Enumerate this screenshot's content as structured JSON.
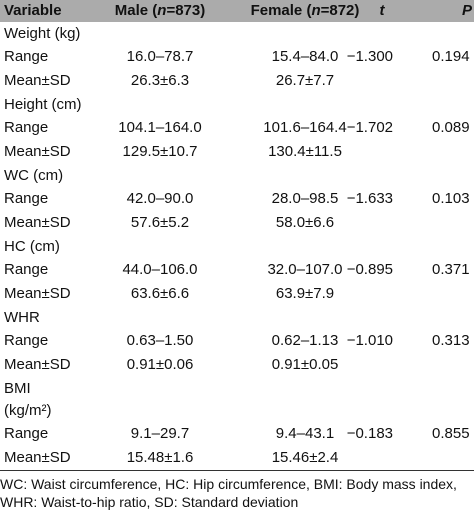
{
  "table": {
    "header": [
      [
        "Variable"
      ],
      [
        "Male (",
        "n",
        "=873)"
      ],
      [
        "Female (",
        "n",
        "=872)"
      ],
      [
        "t"
      ],
      [
        "P"
      ]
    ],
    "groups": [
      {
        "label": [
          "Weight (kg)"
        ],
        "rows": [
          [
            "Range",
            "16.0–78.7",
            "15.4–84.0",
            "−1.300",
            "0.194"
          ],
          [
            "Mean±SD",
            "26.3±6.3",
            "26.7±7.7"
          ]
        ]
      },
      {
        "label": [
          "Height (cm)"
        ],
        "rows": [
          [
            "Range",
            "104.1–164.0",
            "101.6–164.4",
            "−1.702",
            "0.089"
          ],
          [
            "Mean±SD",
            "129.5±10.7",
            "130.4±11.5"
          ]
        ]
      },
      {
        "label": [
          "WC (cm)"
        ],
        "rows": [
          [
            "Range",
            "42.0–90.0",
            "28.0–98.5",
            "−1.633",
            "0.103"
          ],
          [
            "Mean±SD",
            "57.6±5.2",
            "58.0±6.6"
          ]
        ]
      },
      {
        "label": [
          "HC (cm)"
        ],
        "rows": [
          [
            "Range",
            "44.0–106.0",
            "32.0–107.0",
            "−0.895",
            "0.371"
          ],
          [
            "Mean±SD",
            "63.6±6.6",
            "63.9±7.9"
          ]
        ]
      },
      {
        "label": [
          "WHR"
        ],
        "rows": [
          [
            "Range",
            "0.63–1.50",
            "0.62–1.13",
            "−1.010",
            "0.313"
          ],
          [
            "Mean±SD",
            "0.91±0.06",
            "0.91±0.05"
          ]
        ]
      },
      {
        "label": [
          "BMI",
          "(kg/m²)"
        ],
        "rows": [
          [
            "Range",
            "9.1–29.7",
            "9.4–43.1",
            "−0.183",
            "0.855"
          ],
          [
            "Mean±SD",
            "15.48±1.6",
            "15.46±2.4"
          ]
        ]
      }
    ],
    "footnote": [
      "WC: Waist circumference, HC: Hip circumference, BMI: Body mass index,",
      "WHR: Waist-to-hip ratio, SD: Standard deviation"
    ]
  }
}
